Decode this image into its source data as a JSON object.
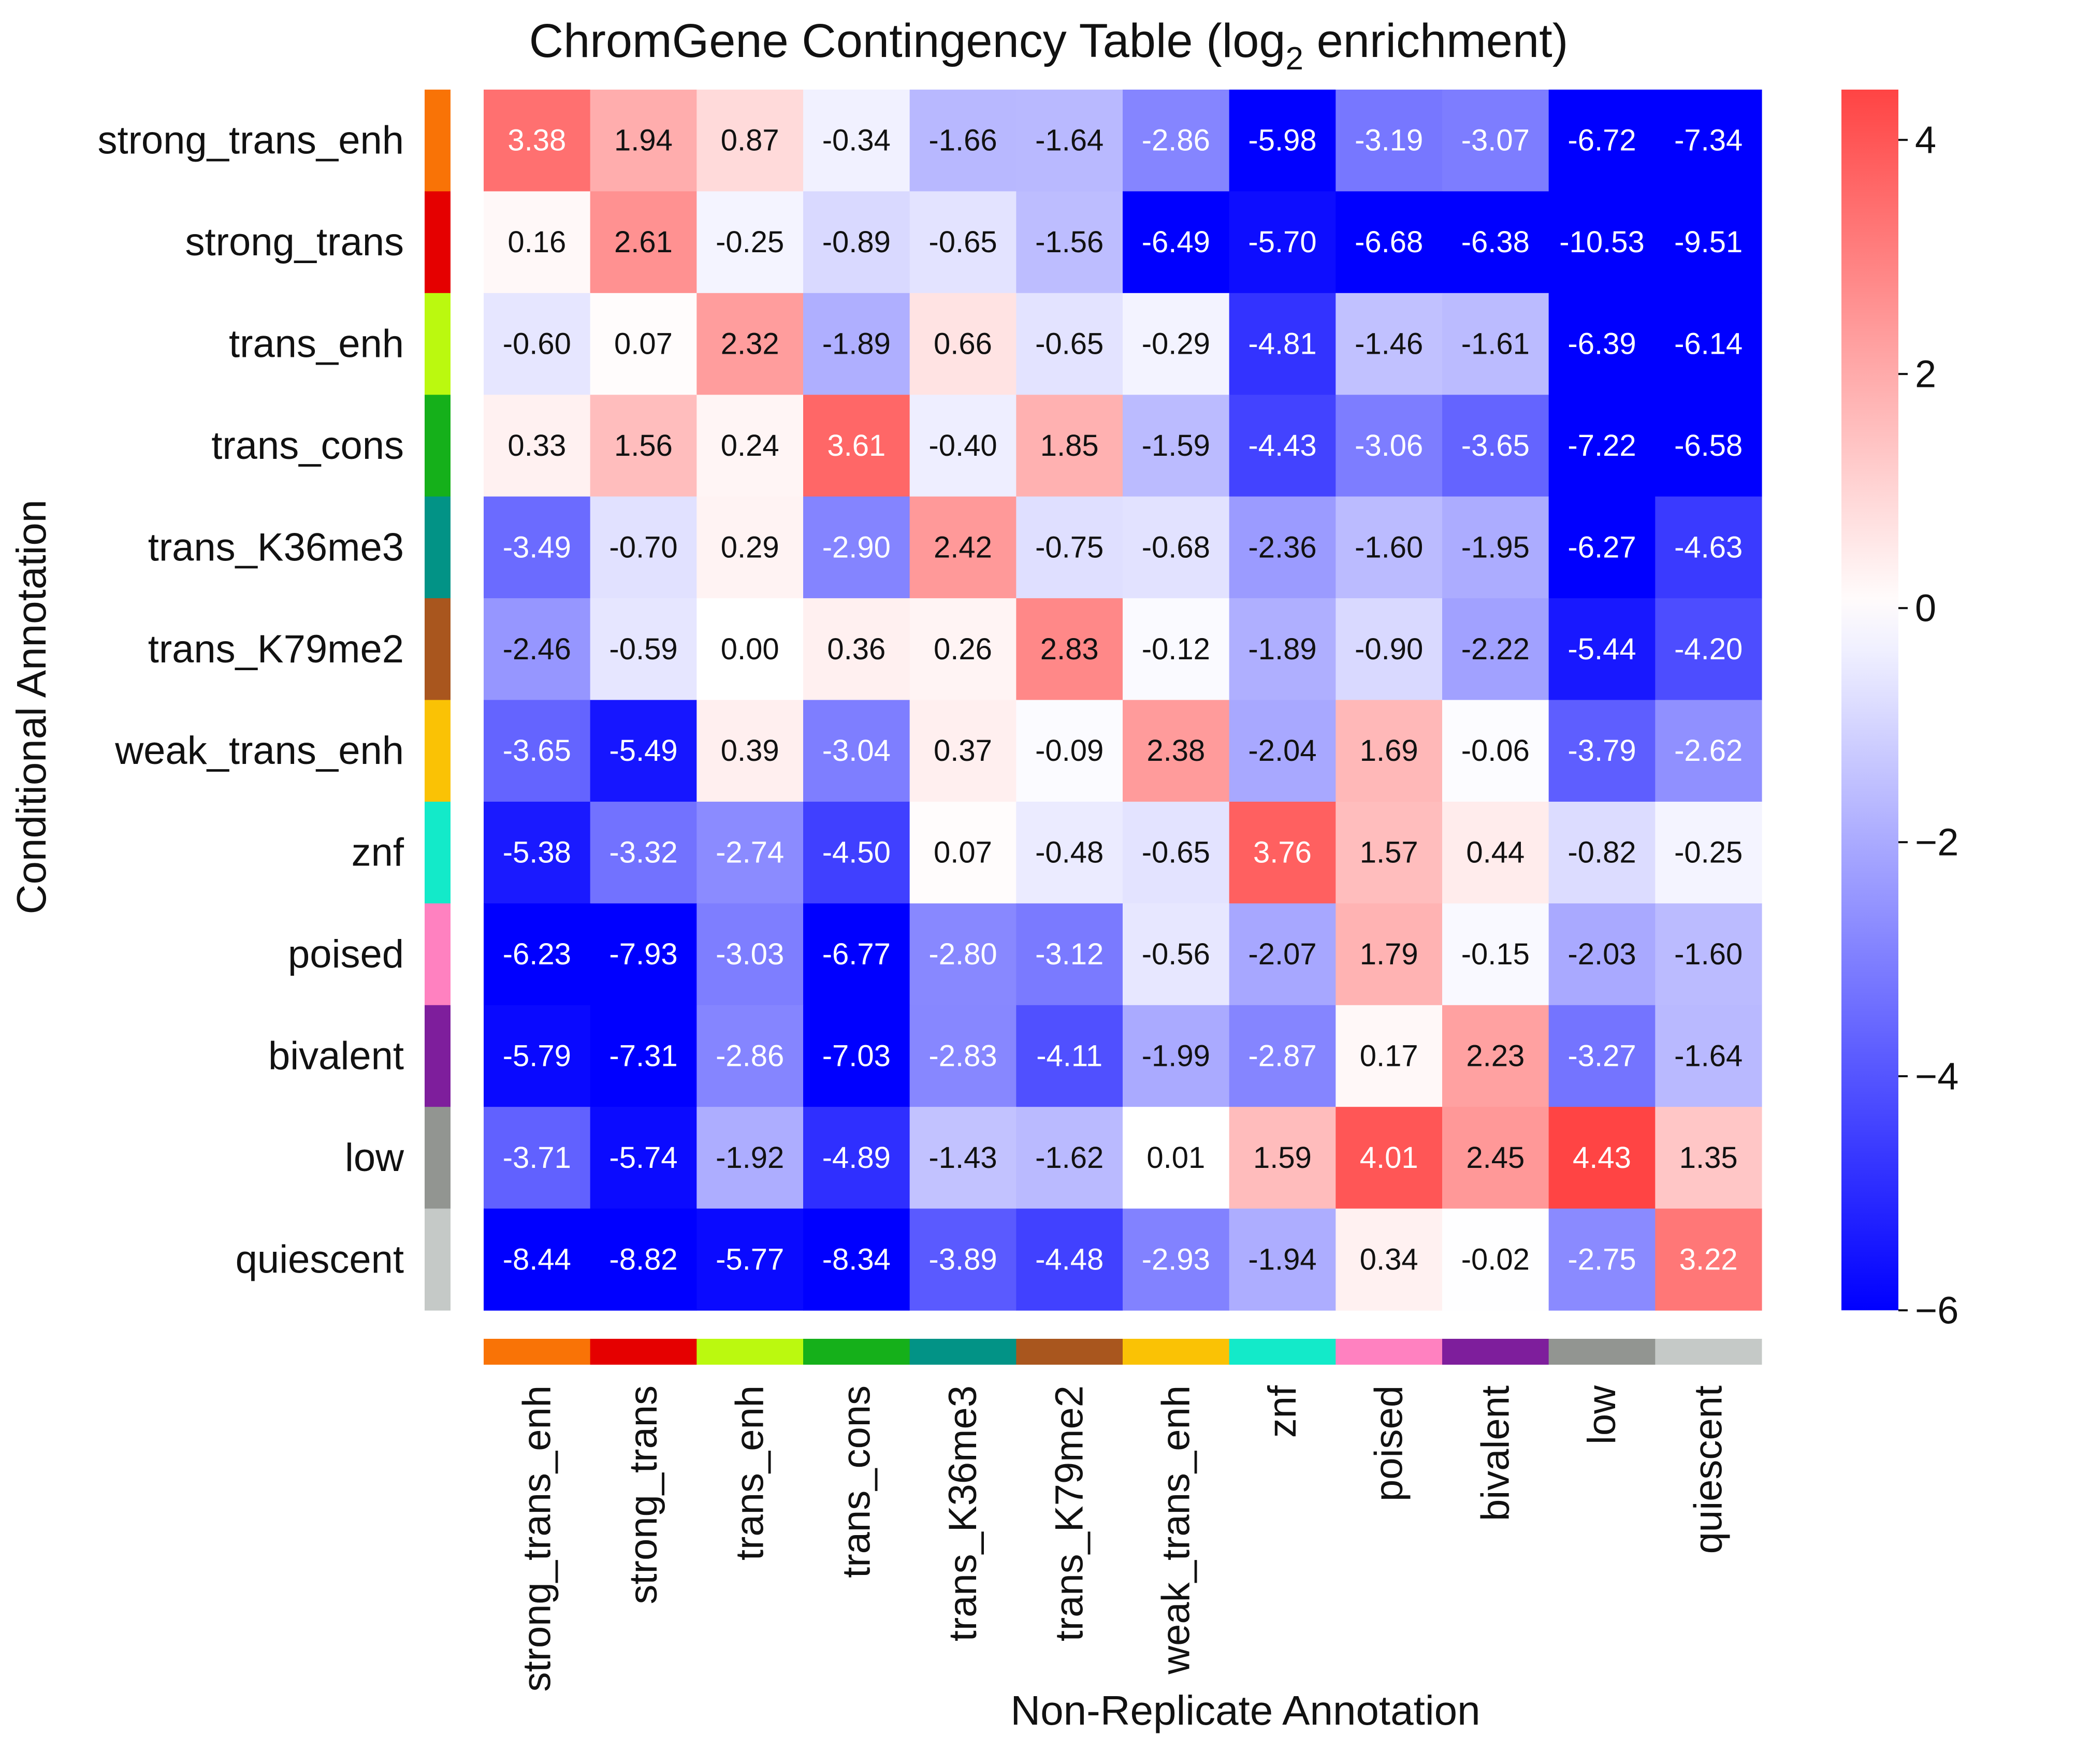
{
  "chart_data": {
    "type": "heatmap",
    "title_prefix": "ChromGene Contingency Table (log",
    "title_sub": "2",
    "title_suffix": " enrichment)",
    "xlabel": "Non-Replicate Annotation",
    "ylabel": "Conditional Annotation",
    "rows": [
      "strong_trans_enh",
      "strong_trans",
      "trans_enh",
      "trans_cons",
      "trans_K36me3",
      "trans_K79me2",
      "weak_trans_enh",
      "znf",
      "poised",
      "bivalent",
      "low",
      "quiescent"
    ],
    "columns": [
      "strong_trans_enh",
      "strong_trans",
      "trans_enh",
      "trans_cons",
      "trans_K36me3",
      "trans_K79me2",
      "weak_trans_enh",
      "znf",
      "poised",
      "bivalent",
      "low",
      "quiescent"
    ],
    "category_colors": [
      "#f97306",
      "#e50000",
      "#bbf90f",
      "#15b01a",
      "#029386",
      "#a9561e",
      "#fac205",
      "#13eac9",
      "#ff81c0",
      "#7e1e9c",
      "#929591",
      "#c5c9c7"
    ],
    "values": [
      [
        "3.38",
        "1.94",
        "0.87",
        "-0.34",
        "-1.66",
        "-1.64",
        "-2.86",
        "-5.98",
        "-3.19",
        "-3.07",
        "-6.72",
        "-7.34"
      ],
      [
        "0.16",
        "2.61",
        "-0.25",
        "-0.89",
        "-0.65",
        "-1.56",
        "-6.49",
        "-5.70",
        "-6.68",
        "-6.38",
        "-10.53",
        "-9.51"
      ],
      [
        "-0.60",
        "0.07",
        "2.32",
        "-1.89",
        "0.66",
        "-0.65",
        "-0.29",
        "-4.81",
        "-1.46",
        "-1.61",
        "-6.39",
        "-6.14"
      ],
      [
        "0.33",
        "1.56",
        "0.24",
        "3.61",
        "-0.40",
        "1.85",
        "-1.59",
        "-4.43",
        "-3.06",
        "-3.65",
        "-7.22",
        "-6.58"
      ],
      [
        "-3.49",
        "-0.70",
        "0.29",
        "-2.90",
        "2.42",
        "-0.75",
        "-0.68",
        "-2.36",
        "-1.60",
        "-1.95",
        "-6.27",
        "-4.63"
      ],
      [
        "-2.46",
        "-0.59",
        "0.00",
        "0.36",
        "0.26",
        "2.83",
        "-0.12",
        "-1.89",
        "-0.90",
        "-2.22",
        "-5.44",
        "-4.20"
      ],
      [
        "-3.65",
        "-5.49",
        "0.39",
        "-3.04",
        "0.37",
        "-0.09",
        "2.38",
        "-2.04",
        "1.69",
        "-0.06",
        "-3.79",
        "-2.62"
      ],
      [
        "-5.38",
        "-3.32",
        "-2.74",
        "-4.50",
        "0.07",
        "-0.48",
        "-0.65",
        "3.76",
        "1.57",
        "0.44",
        "-0.82",
        "-0.25"
      ],
      [
        "-6.23",
        "-7.93",
        "-3.03",
        "-6.77",
        "-2.80",
        "-3.12",
        "-0.56",
        "-2.07",
        "1.79",
        "-0.15",
        "-2.03",
        "-1.60"
      ],
      [
        "-5.79",
        "-7.31",
        "-2.86",
        "-7.03",
        "-2.83",
        "-4.11",
        "-1.99",
        "-2.87",
        "0.17",
        "2.23",
        "-3.27",
        "-1.64"
      ],
      [
        "-3.71",
        "-5.74",
        "-1.92",
        "-4.89",
        "-1.43",
        "-1.62",
        "0.01",
        "1.59",
        "4.01",
        "2.45",
        "4.43",
        "1.35"
      ],
      [
        "-8.44",
        "-8.82",
        "-5.77",
        "-8.34",
        "-3.89",
        "-4.48",
        "-2.93",
        "-1.94",
        "0.34",
        "-0.02",
        "-2.75",
        "3.22"
      ]
    ],
    "colormap": [
      "#0000ff",
      "#ffffff",
      "#ff4444"
    ],
    "vmin": -6,
    "vmax": 4.43,
    "colorbar_ticks": [
      4,
      2,
      0,
      -2,
      -4,
      -6
    ],
    "colorbar_tick_labels": [
      "4",
      "2",
      "0",
      "−2",
      "−4",
      "−6"
    ],
    "grid": false,
    "legend": "colorbar right"
  }
}
